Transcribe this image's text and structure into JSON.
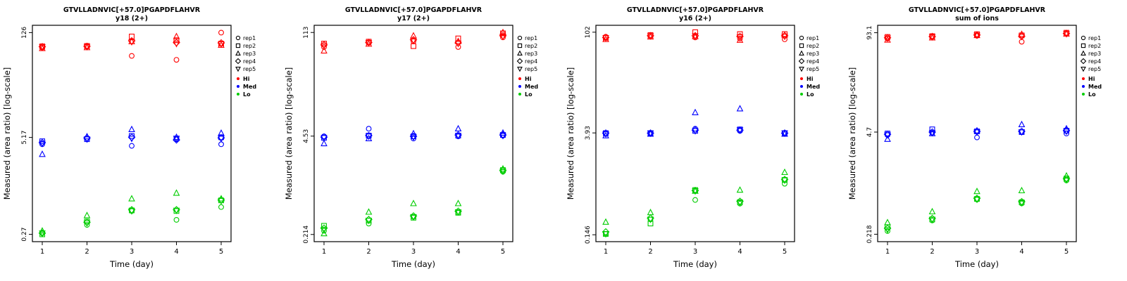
{
  "page": {
    "background": "#ffffff"
  },
  "legend": {
    "reps": [
      {
        "label": "rep1",
        "marker": "circle"
      },
      {
        "label": "rep2",
        "marker": "square"
      },
      {
        "label": "rep3",
        "marker": "triangle-up"
      },
      {
        "label": "rep4",
        "marker": "diamond"
      },
      {
        "label": "rep5",
        "marker": "triangle-down"
      }
    ],
    "levels": [
      {
        "label": "Hi",
        "color": "#ff0000"
      },
      {
        "label": "Med",
        "color": "#0000ff"
      },
      {
        "label": "Lo",
        "color": "#00cd00"
      }
    ]
  },
  "chart_data": [
    {
      "type": "scatter",
      "title": "GTVLLADNVIC[+57.0]PGAPDFLAHVR",
      "subtitle": "y18 (2+)",
      "xlabel": "Time (day)",
      "ylabel": "Measured (area ratio) [log-scale]",
      "yscale": "log",
      "x": [
        1,
        2,
        3,
        4,
        5
      ],
      "ytick_values": [
        0.27,
        5.17,
        126
      ],
      "ytick_labels": [
        "0.27",
        "5.17",
        "126"
      ],
      "series": [
        {
          "name": "Hi",
          "color": "#ff0000",
          "values_by_day": [
            [
              80,
              83,
              78,
              82,
              81
            ],
            [
              82,
              84,
              80,
              83,
              82
            ],
            [
              62,
              112,
              96,
              98,
              95
            ],
            [
              55,
              100,
              112,
              93,
              90
            ],
            [
              126,
              90,
              86,
              92,
              89
            ]
          ]
        },
        {
          "name": "Med",
          "color": "#0000ff",
          "values_by_day": [
            [
              4.2,
              4.6,
              3.1,
              4.4,
              4.3
            ],
            [
              5.0,
              4.9,
              5.3,
              5.1,
              4.9
            ],
            [
              4.0,
              5.4,
              6.6,
              5.2,
              5.0
            ],
            [
              4.9,
              5.0,
              5.2,
              4.8,
              5.0
            ],
            [
              4.2,
              5.2,
              5.9,
              5.1,
              5.0
            ]
          ]
        },
        {
          "name": "Lo",
          "color": "#00cd00",
          "values_by_day": [
            [
              0.28,
              0.27,
              0.3,
              0.28,
              0.28
            ],
            [
              0.36,
              0.4,
              0.48,
              0.39,
              0.38
            ],
            [
              0.55,
              0.56,
              0.8,
              0.57,
              0.55
            ],
            [
              0.42,
              0.55,
              0.95,
              0.57,
              0.56
            ],
            [
              0.62,
              0.76,
              0.8,
              0.77,
              0.75
            ]
          ]
        }
      ]
    },
    {
      "type": "scatter",
      "title": "GTVLLADNVIC[+57.0]PGAPDFLAHVR",
      "subtitle": "y17 (2+)",
      "xlabel": "Time (day)",
      "ylabel": "Measured (area ratio) [log-scale]",
      "yscale": "log",
      "x": [
        1,
        2,
        3,
        4,
        5
      ],
      "ytick_values": [
        0.214,
        4.53,
        113
      ],
      "ytick_labels": [
        "0.214",
        "4.53",
        "113"
      ],
      "series": [
        {
          "name": "Hi",
          "color": "#ff0000",
          "values_by_day": [
            [
              72,
              80,
              64,
              77,
              75
            ],
            [
              82,
              85,
              79,
              83,
              82
            ],
            [
              86,
              74,
              102,
              90,
              88
            ],
            [
              72,
              94,
              86,
              82,
              80
            ],
            [
              97,
              110,
              113,
              102,
              100
            ]
          ]
        },
        {
          "name": "Med",
          "color": "#0000ff",
          "values_by_day": [
            [
              4.5,
              4.3,
              3.6,
              4.4,
              4.3
            ],
            [
              5.7,
              4.6,
              4.2,
              4.6,
              4.5
            ],
            [
              4.2,
              4.5,
              4.9,
              4.5,
              4.4
            ],
            [
              4.5,
              4.6,
              5.7,
              4.7,
              4.6
            ],
            [
              4.6,
              4.7,
              5.0,
              4.7,
              4.6
            ]
          ]
        },
        {
          "name": "Lo",
          "color": "#00cd00",
          "values_by_day": [
            [
              0.24,
              0.28,
              0.22,
              0.26,
              0.25
            ],
            [
              0.3,
              0.33,
              0.43,
              0.34,
              0.33
            ],
            [
              0.37,
              0.36,
              0.56,
              0.38,
              0.37
            ],
            [
              0.42,
              0.42,
              0.56,
              0.44,
              0.43
            ],
            [
              1.5,
              1.58,
              1.64,
              1.56,
              1.52
            ]
          ]
        }
      ]
    },
    {
      "type": "scatter",
      "title": "GTVLLADNVIC[+57.0]PGAPDFLAHVR",
      "subtitle": "y16 (2+)",
      "xlabel": "Time (day)",
      "ylabel": "Measured (area ratio) [log-scale]",
      "yscale": "log",
      "x": [
        1,
        2,
        3,
        4,
        5
      ],
      "ytick_values": [
        0.146,
        3.93,
        102
      ],
      "ytick_labels": [
        "0.146",
        "3.93",
        "102"
      ],
      "series": [
        {
          "name": "Hi",
          "color": "#ff0000",
          "values_by_day": [
            [
              88,
              85,
              81,
              86,
              85
            ],
            [
              90,
              93,
              88,
              91,
              90
            ],
            [
              86,
              102,
              89,
              91,
              90
            ],
            [
              83,
              96,
              79,
              89,
              87
            ],
            [
              81,
              96,
              93,
              91,
              89
            ]
          ]
        },
        {
          "name": "Med",
          "color": "#0000ff",
          "values_by_day": [
            [
              3.8,
              3.9,
              3.6,
              3.9,
              3.8
            ],
            [
              3.8,
              3.9,
              3.8,
              3.9,
              3.9
            ],
            [
              4.5,
              4.2,
              7.6,
              4.3,
              4.2
            ],
            [
              4.2,
              4.4,
              8.6,
              4.3,
              4.3
            ],
            [
              3.9,
              3.9,
              3.8,
              3.9,
              3.9
            ]
          ]
        },
        {
          "name": "Lo",
          "color": "#00cd00",
          "values_by_day": [
            [
              0.15,
              0.15,
              0.22,
              0.16,
              0.15
            ],
            [
              0.24,
              0.21,
              0.3,
              0.25,
              0.24
            ],
            [
              0.45,
              0.62,
              0.6,
              0.61,
              0.6
            ],
            [
              0.4,
              0.42,
              0.62,
              0.43,
              0.41
            ],
            [
              0.76,
              0.86,
              1.1,
              0.87,
              0.85
            ]
          ]
        }
      ]
    },
    {
      "type": "scatter",
      "title": "GTVLLADNVIC[+57.0]PGAPDFLAHVR",
      "subtitle": "sum of ions",
      "xlabel": "Time (day)",
      "ylabel": "Measured (area ratio) [log-scale]",
      "yscale": "log",
      "x": [
        1,
        2,
        3,
        4,
        5
      ],
      "ytick_values": [
        0.218,
        4.7,
        93.1
      ],
      "ytick_labels": [
        "0.218",
        "4.7",
        "93.1"
      ],
      "series": [
        {
          "name": "Hi",
          "color": "#ff0000",
          "values_by_day": [
            [
              78,
              82,
              75,
              80,
              79
            ],
            [
              82,
              84,
              80,
              83,
              82
            ],
            [
              85,
              89,
              86,
              87,
              86
            ],
            [
              71,
              86,
              89,
              84,
              83
            ],
            [
              92,
              93.1,
              90,
              91,
              90
            ]
          ]
        },
        {
          "name": "Med",
          "color": "#0000ff",
          "values_by_day": [
            [
              4.3,
              4.5,
              3.8,
              4.4,
              4.3
            ],
            [
              4.6,
              5.1,
              4.5,
              4.7,
              4.6
            ],
            [
              4.0,
              4.8,
              4.9,
              4.8,
              4.7
            ],
            [
              4.7,
              4.7,
              5.9,
              4.8,
              4.7
            ],
            [
              4.5,
              4.9,
              5.2,
              4.9,
              4.8
            ]
          ]
        },
        {
          "name": "Lo",
          "color": "#00cd00",
          "values_by_day": [
            [
              0.24,
              0.27,
              0.31,
              0.26,
              0.25
            ],
            [
              0.33,
              0.34,
              0.43,
              0.35,
              0.34
            ],
            [
              0.62,
              0.63,
              0.79,
              0.64,
              0.62
            ],
            [
              0.55,
              0.57,
              0.81,
              0.58,
              0.56
            ],
            [
              1.1,
              1.16,
              1.26,
              1.15,
              1.12
            ]
          ]
        }
      ]
    }
  ]
}
